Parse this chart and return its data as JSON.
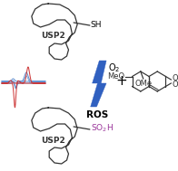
{
  "bg_color": "#ffffff",
  "usp2_top_label": "USP2",
  "usp2_bottom_label": "USP2",
  "sh_label": "SH",
  "ros_label": "ROS",
  "o2_label": "O₂",
  "plus_label": "+",
  "meo_label1": "MeO",
  "meo_label2": "OMe",
  "protein_color": "#333333",
  "lightning_color": "#3060c0",
  "cv_blue_color": "#5588cc",
  "cv_red_color": "#cc3333",
  "nq_color": "#333333",
  "sh_color": "#000000",
  "so2h_color": "#993399",
  "fig_width": 1.96,
  "fig_height": 1.89,
  "dpi": 100
}
